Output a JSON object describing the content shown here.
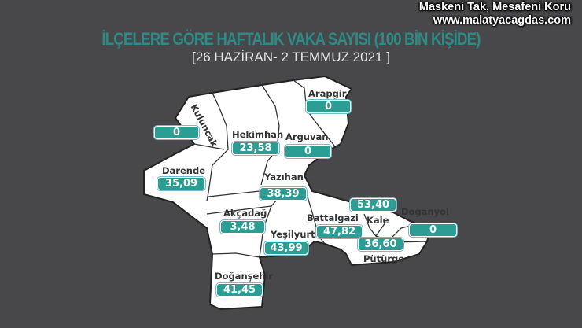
{
  "title": "İLÇELERE GÖRE HAFTALIK VAKA SAYISI (100 BİN KİŞİDE)",
  "subtitle": "[26 HAZİRAN- 2 TEMMUZ 2021 ]",
  "watermark": {
    "line1": "Maskeni Tak, Mesafeni Koru",
    "line2": "www.malatyacagdas.com"
  },
  "colors": {
    "background": "#48484a",
    "title": "#2e8a86",
    "value_box": "#2b9d92",
    "map_fill": "#ffffff"
  },
  "districts": [
    {
      "name": "Arapgir",
      "value": "0"
    },
    {
      "name": "Kuluncak",
      "value": "0"
    },
    {
      "name": "Hekimhan",
      "value": "23,58"
    },
    {
      "name": "Arguvan",
      "value": "0"
    },
    {
      "name": "Darende",
      "value": "35,09"
    },
    {
      "name": "Yazıhan",
      "value": "38,39"
    },
    {
      "name": "Akçadağ",
      "value": "3,48"
    },
    {
      "name": "Battalgazi",
      "value": "47,82"
    },
    {
      "name": "Yeşilyurt",
      "value": "43,99"
    },
    {
      "name": "Kale",
      "value": "53,40"
    },
    {
      "name": "Doğanyol",
      "value": "0"
    },
    {
      "name": "Pütürge",
      "value": "36,60"
    },
    {
      "name": "Doğanşehir",
      "value": "41,45"
    }
  ]
}
